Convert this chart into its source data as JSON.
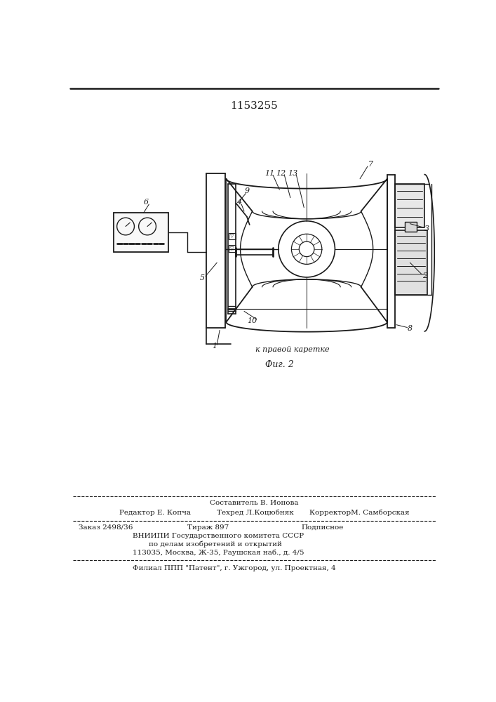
{
  "patent_number": "1153255",
  "fig_label": "Фиг. 2",
  "background_color": "#ffffff",
  "line_color": "#1a1a1a",
  "text_color": "#1a1a1a",
  "footer": {
    "line1_center": "Составитель В. Ионова",
    "line2a": "Редактор Е. Копча",
    "line2b": "Техред Л.Коцюбняк",
    "line2c": "КорректорМ. Самборская",
    "line3a": "Заказ 2498/36",
    "line3b": "Тираж 897",
    "line3c": "Подписное",
    "line4": "ВНИИПИ Государственного комитета СССР",
    "line5": "по делам изобретений и открытий",
    "line6": "113035, Москва, Ж-35, Раушская наб., д. 4/5",
    "line7": "Филиал ППП \"Патент\", г. Ужгород, ул. Проектная, 4"
  }
}
